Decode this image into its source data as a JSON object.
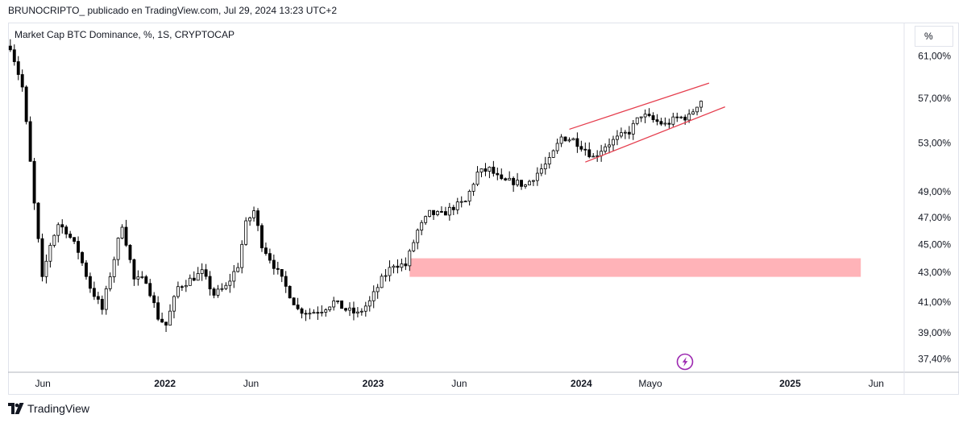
{
  "header": {
    "attribution": "BRUNOCRIPTO_ publicado en TradingView.com, Jul 29, 2024 13:23 UTC+2"
  },
  "chart_header": {
    "symbol_title": "Market Cap BTC Dominance, %, 1S, CRYPTOCAP",
    "unit_label": "%"
  },
  "footer": {
    "brand": "TradingView",
    "logo_icon": "tradingview-logo-icon"
  },
  "colors": {
    "candle": "#000000",
    "channel_line": "#e53e4e",
    "zone_fill": "#ffb3b8",
    "badge": "#9c27b0",
    "grid_border": "#e0e3eb",
    "text": "#131722"
  },
  "chart_data": {
    "type": "candlestick",
    "title": "Market Cap BTC Dominance, %, 1S, CRYPTOCAP",
    "timeframe": "1S",
    "ylabel": "%",
    "yscale": "log",
    "ylim": [
      36.6,
      64.4
    ],
    "xlim": [
      "2021-04-01",
      "2025-07-20"
    ],
    "grid": false,
    "y_ticks": [
      {
        "value": 61.0,
        "label": "61,00%"
      },
      {
        "value": 57.0,
        "label": "57,00%"
      },
      {
        "value": 53.0,
        "label": "53,00%"
      },
      {
        "value": 49.0,
        "label": "49,00%"
      },
      {
        "value": 47.0,
        "label": "47,00%"
      },
      {
        "value": 45.0,
        "label": "45,00%"
      },
      {
        "value": 43.0,
        "label": "43,00%"
      },
      {
        "value": 41.0,
        "label": "41,00%"
      },
      {
        "value": 39.0,
        "label": "39,00%"
      },
      {
        "value": 37.4,
        "label": "37,40%"
      }
    ],
    "x_ticks": [
      {
        "date": "2021-06-01",
        "label": "Jun",
        "bold": false
      },
      {
        "date": "2022-01-01",
        "label": "2022",
        "bold": true
      },
      {
        "date": "2022-06-01",
        "label": "Jun",
        "bold": false
      },
      {
        "date": "2023-01-01",
        "label": "2023",
        "bold": true
      },
      {
        "date": "2023-06-01",
        "label": "Jun",
        "bold": false
      },
      {
        "date": "2024-01-01",
        "label": "2024",
        "bold": true
      },
      {
        "date": "2024-05-01",
        "label": "Mayo",
        "bold": false
      },
      {
        "date": "2025-01-01",
        "label": "2025",
        "bold": true
      },
      {
        "date": "2025-06-01",
        "label": "Jun",
        "bold": false
      }
    ],
    "anchors": [
      [
        "2021-04-05",
        62.0
      ],
      [
        "2021-04-26",
        58.0
      ],
      [
        "2021-05-17",
        48.0
      ],
      [
        "2021-05-31",
        42.5
      ],
      [
        "2021-06-14",
        45.0
      ],
      [
        "2021-06-28",
        46.5
      ],
      [
        "2021-07-12",
        46.0
      ],
      [
        "2021-08-02",
        44.5
      ],
      [
        "2021-08-23",
        42.0
      ],
      [
        "2021-09-13",
        40.5
      ],
      [
        "2021-10-04",
        44.0
      ],
      [
        "2021-10-18",
        46.5
      ],
      [
        "2021-11-08",
        42.5
      ],
      [
        "2021-11-29",
        42.5
      ],
      [
        "2021-12-20",
        40.0
      ],
      [
        "2022-01-03",
        39.5
      ],
      [
        "2022-01-24",
        42.0
      ],
      [
        "2022-02-14",
        42.5
      ],
      [
        "2022-03-07",
        43.0
      ],
      [
        "2022-03-28",
        41.5
      ],
      [
        "2022-04-18",
        42.0
      ],
      [
        "2022-05-09",
        43.5
      ],
      [
        "2022-05-23",
        46.5
      ],
      [
        "2022-06-06",
        47.5
      ],
      [
        "2022-06-20",
        45.0
      ],
      [
        "2022-07-11",
        43.5
      ],
      [
        "2022-08-01",
        42.0
      ],
      [
        "2022-08-22",
        40.5
      ],
      [
        "2022-09-12",
        40.3
      ],
      [
        "2022-10-03",
        40.5
      ],
      [
        "2022-10-24",
        41.0
      ],
      [
        "2022-11-14",
        40.5
      ],
      [
        "2022-12-05",
        40.2
      ],
      [
        "2022-12-26",
        41.0
      ],
      [
        "2023-01-16",
        42.5
      ],
      [
        "2023-02-06",
        43.6
      ],
      [
        "2023-02-27",
        43.5
      ],
      [
        "2023-03-20",
        46.0
      ],
      [
        "2023-04-10",
        47.3
      ],
      [
        "2023-05-01",
        47.2
      ],
      [
        "2023-05-22",
        47.8
      ],
      [
        "2023-06-12",
        48.2
      ],
      [
        "2023-07-03",
        50.5
      ],
      [
        "2023-07-24",
        50.8
      ],
      [
        "2023-08-14",
        49.8
      ],
      [
        "2023-09-04",
        49.8
      ],
      [
        "2023-09-25",
        49.5
      ],
      [
        "2023-10-16",
        50.5
      ],
      [
        "2023-11-06",
        51.5
      ],
      [
        "2023-11-27",
        53.5
      ],
      [
        "2023-12-18",
        53.3
      ],
      [
        "2024-01-08",
        52.5
      ],
      [
        "2024-01-22",
        51.8
      ],
      [
        "2024-02-12",
        52.8
      ],
      [
        "2024-03-04",
        53.4
      ],
      [
        "2024-03-25",
        54.0
      ],
      [
        "2024-04-15",
        55.5
      ],
      [
        "2024-05-06",
        55.0
      ],
      [
        "2024-05-27",
        54.6
      ],
      [
        "2024-06-17",
        55.2
      ],
      [
        "2024-07-08",
        55.3
      ],
      [
        "2024-07-22",
        56.4
      ],
      [
        "2024-07-29",
        56.8
      ]
    ],
    "annotations": [
      {
        "type": "trendline",
        "name": "channel-upper",
        "start": [
          "2023-12-11",
          54.2
        ],
        "end": [
          "2024-08-12",
          58.4
        ]
      },
      {
        "type": "trendline",
        "name": "channel-lower",
        "start": [
          "2024-01-08",
          51.4
        ],
        "end": [
          "2024-09-09",
          56.2
        ]
      },
      {
        "type": "zone",
        "name": "support-zone",
        "start": "2023-03-06",
        "end": "2025-05-05",
        "y_low": 42.7,
        "y_high": 44.0
      }
    ]
  }
}
